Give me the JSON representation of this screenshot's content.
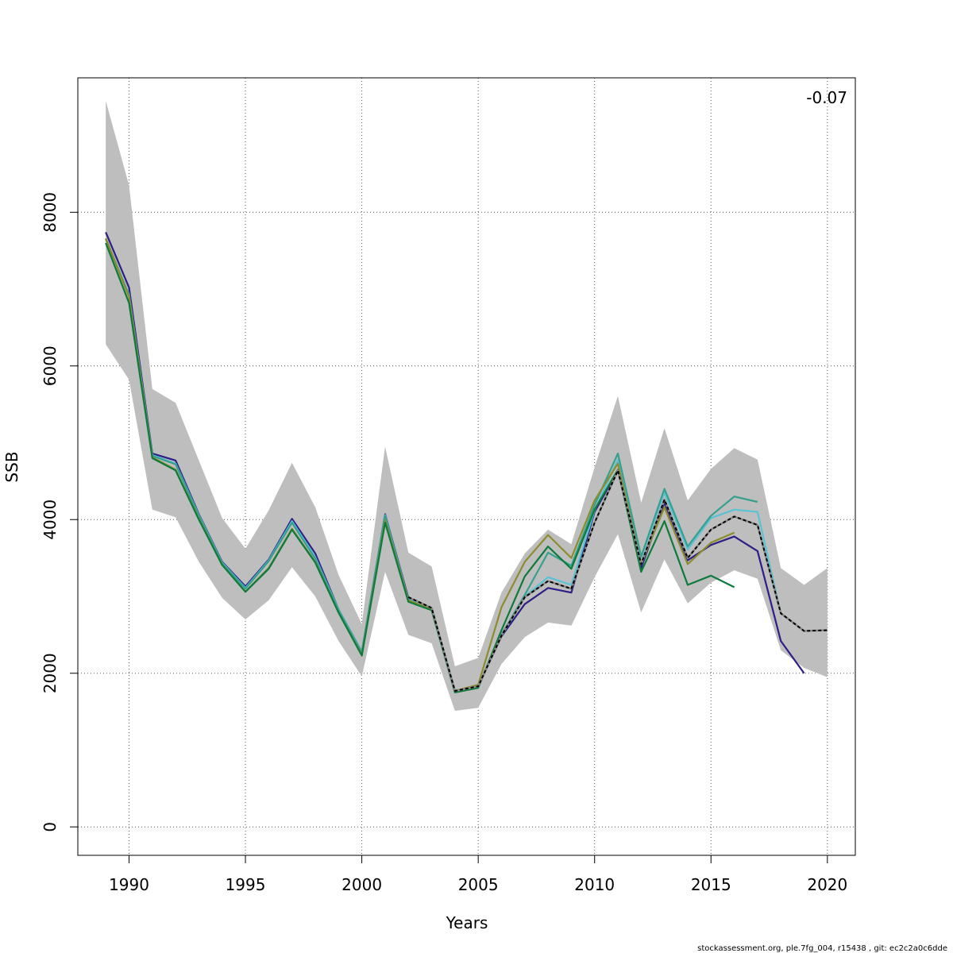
{
  "chart_data": {
    "type": "line",
    "xlabel": "Years",
    "ylabel": "SSB",
    "xlim": [
      1987.8,
      2021.2
    ],
    "ylim": [
      -370,
      9750
    ],
    "x_ticks": [
      1990,
      1995,
      2000,
      2005,
      2010,
      2015,
      2020
    ],
    "y_ticks": [
      0,
      2000,
      4000,
      6000,
      8000
    ],
    "grid": true,
    "annotation": "-0.07",
    "confidence_band": {
      "color": "#bebebe",
      "x": [
        1989,
        1990,
        1991,
        1992,
        1993,
        1994,
        1995,
        1996,
        1997,
        1998,
        1999,
        2000,
        2001,
        2002,
        2003,
        2004,
        2005,
        2006,
        2007,
        2008,
        2009,
        2010,
        2011,
        2012,
        2013,
        2014,
        2015,
        2016,
        2017,
        2018,
        2019,
        2020
      ],
      "upper": [
        9450,
        8350,
        5700,
        5520,
        4770,
        4020,
        3620,
        4120,
        4740,
        4160,
        3280,
        2640,
        4950,
        3570,
        3390,
        2090,
        2200,
        3050,
        3560,
        3870,
        3680,
        4680,
        5610,
        4220,
        5190,
        4250,
        4660,
        4930,
        4780,
        3370,
        3150,
        3370
      ],
      "lower": [
        6280,
        5820,
        4130,
        4030,
        3450,
        2980,
        2700,
        2950,
        3380,
        3000,
        2420,
        1960,
        3320,
        2500,
        2390,
        1510,
        1550,
        2120,
        2470,
        2660,
        2620,
        3250,
        3810,
        2790,
        3480,
        2910,
        3180,
        3340,
        3230,
        2300,
        2070,
        1950
      ]
    },
    "series": [
      {
        "color": "#2d1e88",
        "x": [
          1989,
          1990,
          1991,
          1992,
          1993,
          1994,
          1995,
          1996,
          1997,
          1998,
          1999,
          2000,
          2001,
          2002,
          2003,
          2004,
          2005,
          2006,
          2007,
          2008,
          2009,
          2010,
          2011,
          2012,
          2013,
          2014,
          2015,
          2016,
          2017,
          2018,
          2019
        ],
        "values": [
          7740,
          7020,
          4860,
          4770,
          4070,
          3450,
          3130,
          3480,
          4010,
          3560,
          2830,
          2280,
          4070,
          2980,
          2830,
          1770,
          1830,
          2480,
          2900,
          3110,
          3050,
          4100,
          4640,
          3370,
          4220,
          3470,
          3670,
          3780,
          3590,
          2420,
          2000
        ]
      },
      {
        "color": "#59c2d6",
        "x": [
          1989,
          1990,
          1991,
          1992,
          1993,
          1994,
          1995,
          1996,
          1997,
          1998,
          1999,
          2000,
          2001,
          2002,
          2003,
          2004,
          2005,
          2006,
          2007,
          2008,
          2009,
          2010,
          2011,
          2012,
          2013,
          2014,
          2015,
          2016,
          2017,
          2018
        ],
        "values": [
          7660,
          6930,
          4840,
          4730,
          4060,
          3440,
          3110,
          3470,
          3980,
          3510,
          2830,
          2280,
          4060,
          2960,
          2840,
          1770,
          1830,
          2500,
          3000,
          3250,
          3150,
          4120,
          4780,
          3500,
          4350,
          3610,
          4020,
          4130,
          4100,
          2780
        ]
      },
      {
        "color": "#36a08e",
        "x": [
          1989,
          1990,
          1991,
          1992,
          1993,
          1994,
          1995,
          1996,
          1997,
          1998,
          1999,
          2000,
          2001,
          2002,
          2003,
          2004,
          2005,
          2006,
          2007,
          2008,
          2009,
          2010,
          2011,
          2012,
          2013,
          2014,
          2015,
          2016,
          2017
        ],
        "values": [
          7650,
          6920,
          4830,
          4720,
          4050,
          3430,
          3100,
          3460,
          3960,
          3490,
          2820,
          2270,
          4050,
          2950,
          2830,
          1760,
          1820,
          2500,
          3020,
          3570,
          3400,
          4190,
          4860,
          3520,
          4400,
          3650,
          4050,
          4300,
          4230
        ]
      },
      {
        "color": "#8c8c2e",
        "x": [
          1989,
          1990,
          1991,
          1992,
          1993,
          1994,
          1995,
          1996,
          1997,
          1998,
          1999,
          2000,
          2001,
          2002,
          2003,
          2004,
          2005,
          2006,
          2007,
          2008,
          2009,
          2010,
          2011,
          2012,
          2013,
          2014,
          2015,
          2016
        ],
        "values": [
          7660,
          6900,
          4810,
          4650,
          4010,
          3410,
          3060,
          3370,
          3880,
          3450,
          2790,
          2240,
          3990,
          2950,
          2830,
          1770,
          1850,
          2860,
          3450,
          3800,
          3500,
          4250,
          4730,
          3420,
          4160,
          3420,
          3700,
          3830
        ]
      },
      {
        "color": "#0e7a3b",
        "x": [
          1989,
          1990,
          1991,
          1992,
          1993,
          1994,
          1995,
          1996,
          1997,
          1998,
          1999,
          2000,
          2001,
          2002,
          2003,
          2004,
          2005,
          2006,
          2007,
          2008,
          2009,
          2010,
          2011,
          2012,
          2013,
          2014,
          2015,
          2016
        ],
        "values": [
          7600,
          6820,
          4800,
          4640,
          4000,
          3410,
          3060,
          3360,
          3870,
          3440,
          2790,
          2230,
          3960,
          2930,
          2820,
          1750,
          1810,
          2560,
          3260,
          3650,
          3360,
          4130,
          4650,
          3320,
          3980,
          3150,
          3270,
          3120
        ]
      },
      {
        "color": "#000000",
        "dashed": true,
        "x": [
          2002,
          2003,
          2004,
          2005,
          2006,
          2007,
          2008,
          2009,
          2010,
          2011,
          2012,
          2013,
          2014,
          2015,
          2016,
          2017,
          2018,
          2019,
          2020
        ],
        "values": [
          2990,
          2850,
          1770,
          1830,
          2490,
          2990,
          3200,
          3100,
          3960,
          4640,
          3420,
          4260,
          3500,
          3870,
          4040,
          3930,
          2780,
          2550,
          2560
        ]
      }
    ]
  },
  "footer": "stockassessment.org, ple.7fg_004, r15438 , git: ec2c2a0c6dde"
}
